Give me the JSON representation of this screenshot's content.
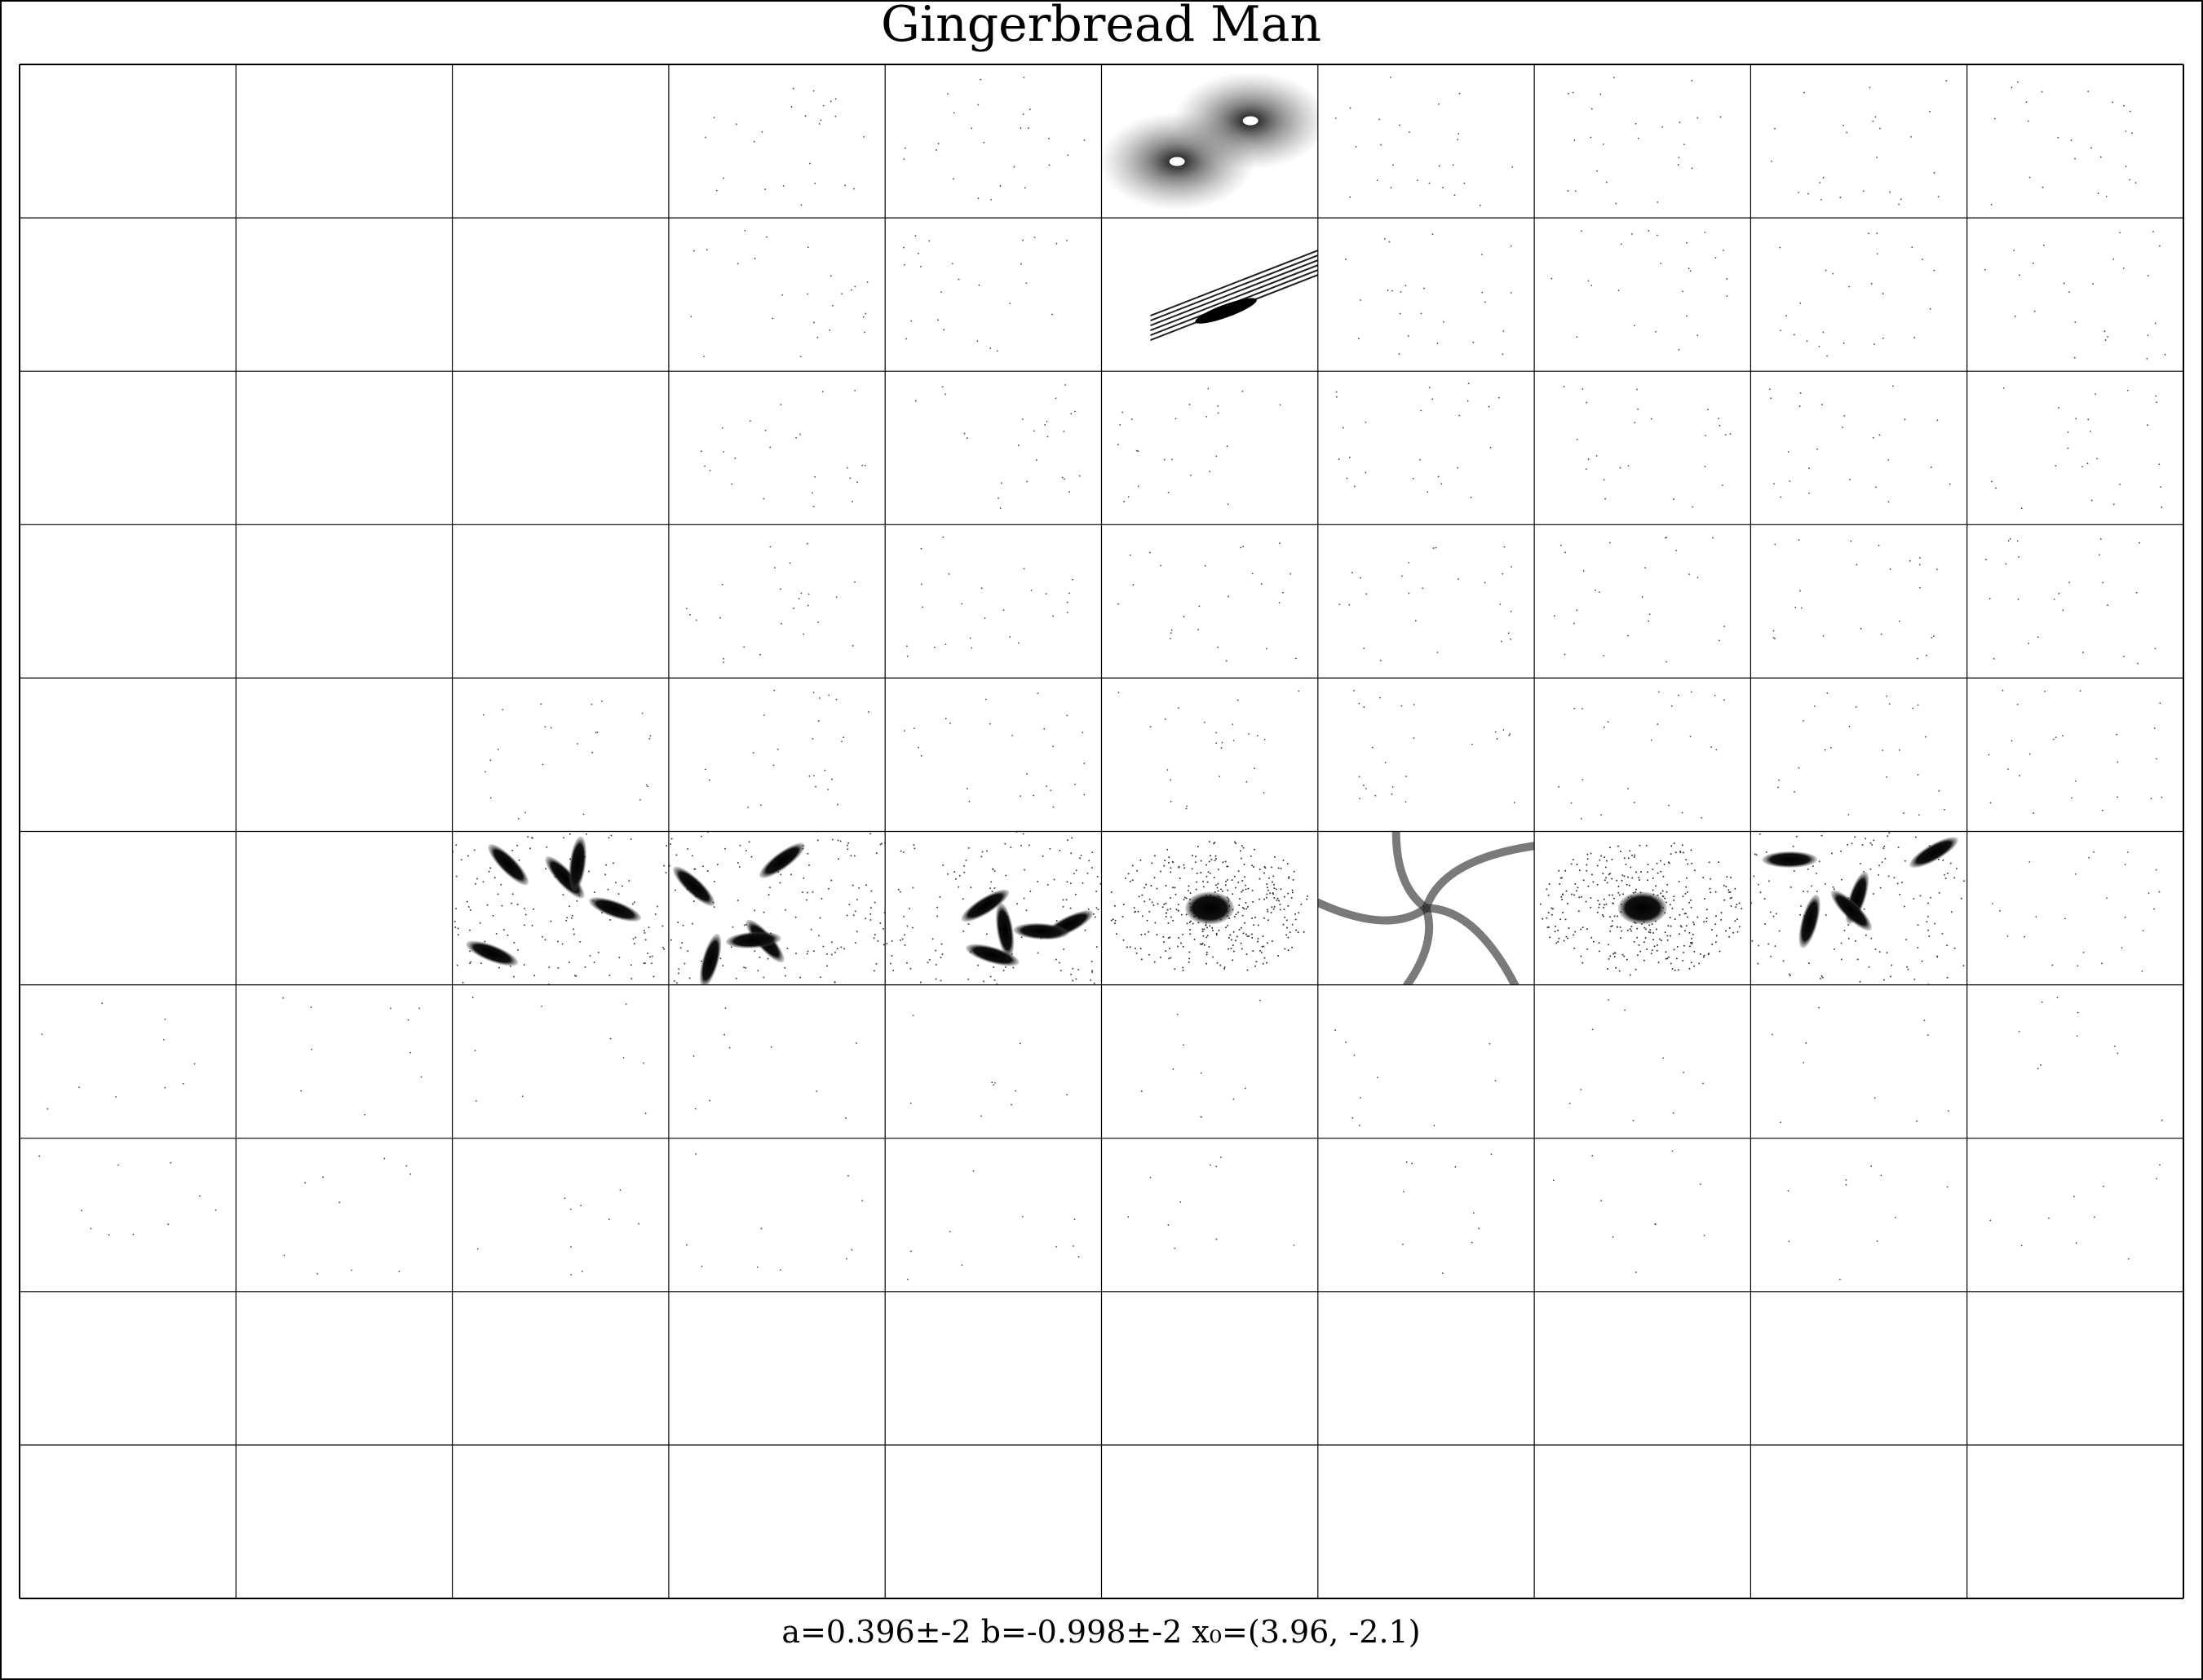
{
  "header": {
    "title": "Gingerbread Man"
  },
  "footer": {
    "caption": "a=0.396±-2 b=-0.998±-2 x₀=(3.96, -2.1)"
  }
}
